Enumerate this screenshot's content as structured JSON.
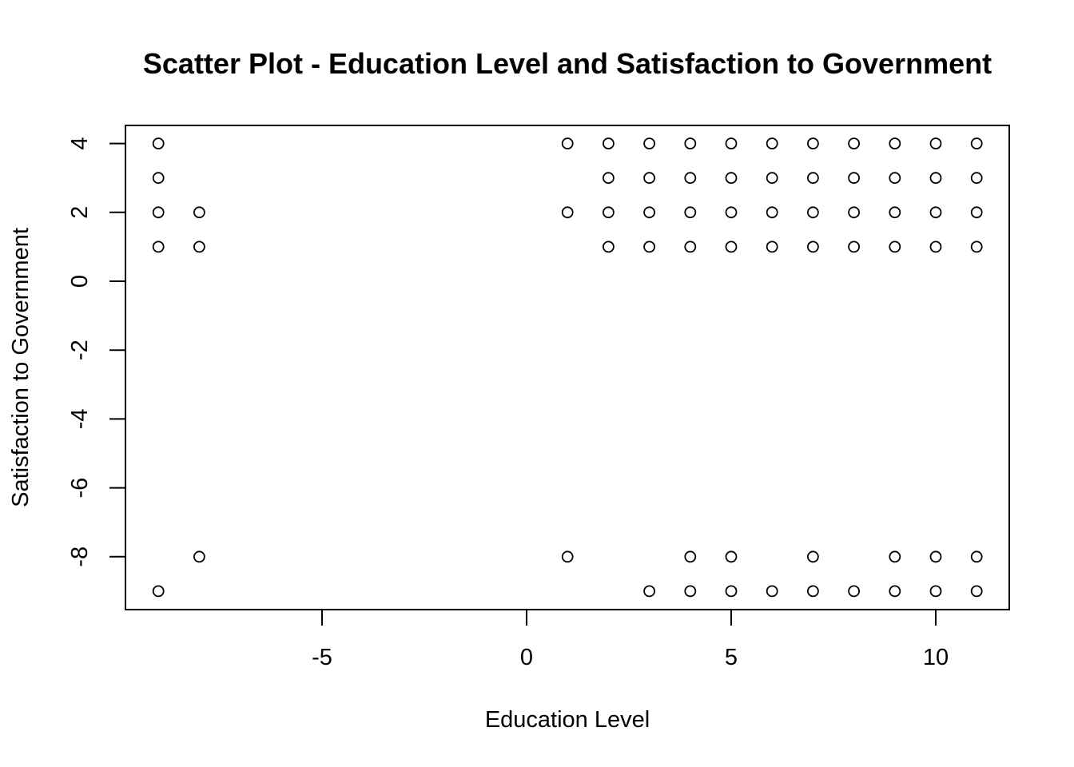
{
  "chart_data": {
    "type": "scatter",
    "title": "Scatter Plot - Education Level and Satisfaction to Government",
    "xlabel": "Education Level",
    "ylabel": "Satisfaction to Government",
    "xlim": [
      -9,
      11
    ],
    "ylim": [
      -9,
      4
    ],
    "xticks": [
      -5,
      0,
      5,
      10
    ],
    "yticks": [
      -8,
      -6,
      -4,
      -2,
      0,
      2,
      4
    ],
    "grid": false,
    "marker": "open-circle",
    "points": [
      {
        "x": -9,
        "y": 4
      },
      {
        "x": -9,
        "y": 3
      },
      {
        "x": -9,
        "y": 2
      },
      {
        "x": -9,
        "y": 1
      },
      {
        "x": -9,
        "y": -9
      },
      {
        "x": -8,
        "y": 2
      },
      {
        "x": -8,
        "y": 1
      },
      {
        "x": -8,
        "y": -8
      },
      {
        "x": 1,
        "y": 4
      },
      {
        "x": 1,
        "y": 2
      },
      {
        "x": 1,
        "y": -8
      },
      {
        "x": 2,
        "y": 4
      },
      {
        "x": 2,
        "y": 3
      },
      {
        "x": 2,
        "y": 2
      },
      {
        "x": 2,
        "y": 1
      },
      {
        "x": 3,
        "y": 4
      },
      {
        "x": 3,
        "y": 3
      },
      {
        "x": 3,
        "y": 2
      },
      {
        "x": 3,
        "y": 1
      },
      {
        "x": 3,
        "y": -9
      },
      {
        "x": 4,
        "y": 4
      },
      {
        "x": 4,
        "y": 3
      },
      {
        "x": 4,
        "y": 2
      },
      {
        "x": 4,
        "y": 1
      },
      {
        "x": 4,
        "y": -8
      },
      {
        "x": 4,
        "y": -9
      },
      {
        "x": 5,
        "y": 4
      },
      {
        "x": 5,
        "y": 3
      },
      {
        "x": 5,
        "y": 2
      },
      {
        "x": 5,
        "y": 1
      },
      {
        "x": 5,
        "y": -8
      },
      {
        "x": 5,
        "y": -9
      },
      {
        "x": 6,
        "y": 4
      },
      {
        "x": 6,
        "y": 3
      },
      {
        "x": 6,
        "y": 2
      },
      {
        "x": 6,
        "y": 1
      },
      {
        "x": 6,
        "y": -9
      },
      {
        "x": 7,
        "y": 4
      },
      {
        "x": 7,
        "y": 3
      },
      {
        "x": 7,
        "y": 2
      },
      {
        "x": 7,
        "y": 1
      },
      {
        "x": 7,
        "y": -8
      },
      {
        "x": 7,
        "y": -9
      },
      {
        "x": 8,
        "y": 4
      },
      {
        "x": 8,
        "y": 3
      },
      {
        "x": 8,
        "y": 2
      },
      {
        "x": 8,
        "y": 1
      },
      {
        "x": 8,
        "y": -9
      },
      {
        "x": 9,
        "y": 4
      },
      {
        "x": 9,
        "y": 3
      },
      {
        "x": 9,
        "y": 2
      },
      {
        "x": 9,
        "y": 1
      },
      {
        "x": 9,
        "y": -8
      },
      {
        "x": 9,
        "y": -9
      },
      {
        "x": 10,
        "y": 4
      },
      {
        "x": 10,
        "y": 3
      },
      {
        "x": 10,
        "y": 2
      },
      {
        "x": 10,
        "y": 1
      },
      {
        "x": 10,
        "y": -8
      },
      {
        "x": 10,
        "y": -9
      },
      {
        "x": 11,
        "y": 4
      },
      {
        "x": 11,
        "y": 3
      },
      {
        "x": 11,
        "y": 2
      },
      {
        "x": 11,
        "y": 1
      },
      {
        "x": 11,
        "y": -8
      },
      {
        "x": 11,
        "y": -9
      }
    ]
  }
}
